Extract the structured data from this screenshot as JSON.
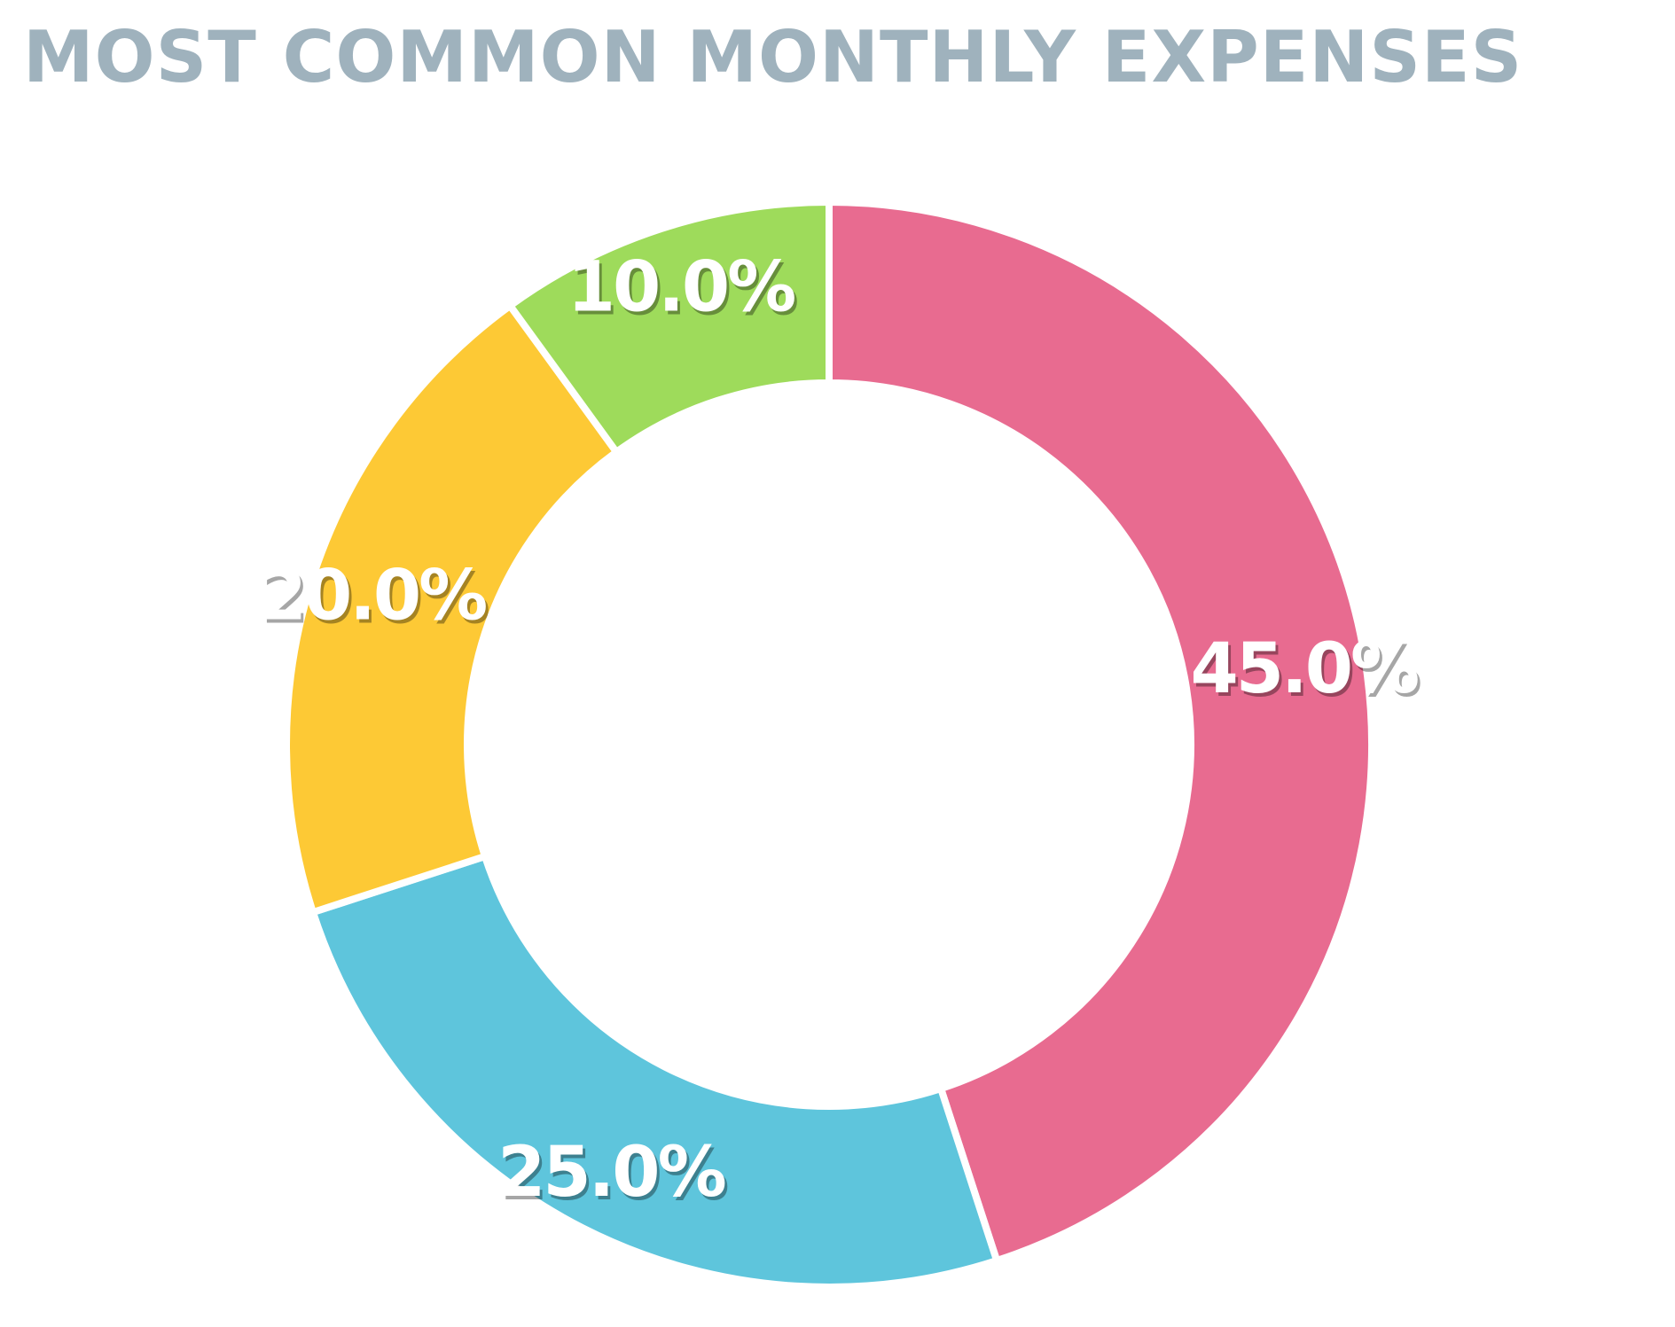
{
  "chart_data": {
    "type": "pie",
    "variant": "donut",
    "title": "MOST COMMON MONTHLY EXPENSES",
    "slices": [
      {
        "label": "45.0%",
        "value": 45.0,
        "color": "#e86b90"
      },
      {
        "label": "25.0%",
        "value": 25.0,
        "color": "#5ec5dc"
      },
      {
        "label": "20.0%",
        "value": 20.0,
        "color": "#fdc935"
      },
      {
        "label": "10.0%",
        "value": 10.0,
        "color": "#9edb5b"
      }
    ],
    "start_angle_degrees": 0,
    "direction": "clockwise",
    "legend": "none"
  }
}
